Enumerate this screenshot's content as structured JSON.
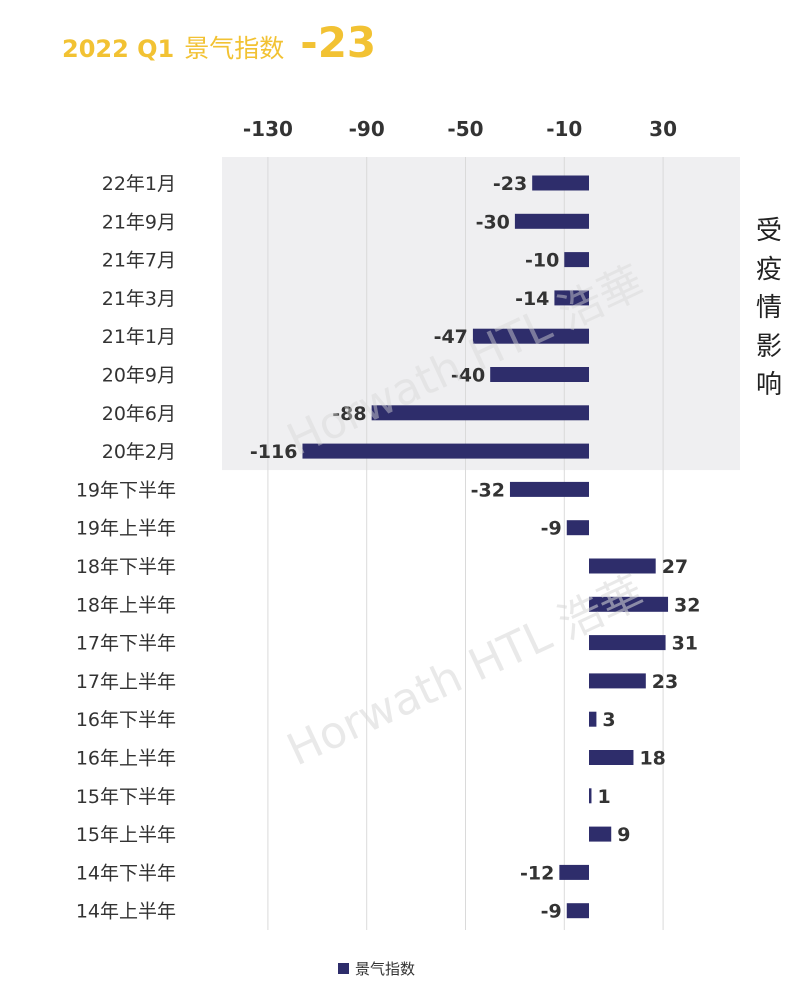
{
  "title": {
    "year_quarter": "2022 Q1",
    "label": "景气指数",
    "value": "-23"
  },
  "side_note": [
    "受",
    "疫",
    "情",
    "影",
    "响"
  ],
  "watermark": "Horwath HTL 浩華",
  "colors": {
    "bar": "#2E2D6B",
    "title": "#F2C233",
    "shade": "#EFEFF1",
    "grid": "#DADADA"
  },
  "chart_data": {
    "type": "bar",
    "orientation": "horizontal",
    "categories": [
      "22年1月",
      "21年9月",
      "21年7月",
      "21年3月",
      "21年1月",
      "20年9月",
      "20年6月",
      "20年2月",
      "19年下半年",
      "19年上半年",
      "18年下半年",
      "18年上半年",
      "17年下半年",
      "17年上半年",
      "16年下半年",
      "16年上半年",
      "15年下半年",
      "15年上半年",
      "14年下半年",
      "14年上半年"
    ],
    "series": [
      {
        "name": "景气指数",
        "values": [
          -23,
          -30,
          -10,
          -14,
          -47,
          -40,
          -88,
          -116,
          -32,
          -9,
          27,
          32,
          31,
          23,
          3,
          18,
          1,
          9,
          -12,
          -9
        ]
      }
    ],
    "xticks": [
      -130,
      -90,
      -50,
      -10,
      30
    ],
    "xlim": [
      -146,
      54
    ],
    "data_labels": true,
    "shaded_categories": [
      "22年1月",
      "21年9月",
      "21年7月",
      "21年3月",
      "21年1月",
      "20年9月",
      "20年6月",
      "20年2月"
    ],
    "legend": {
      "position": "bottom",
      "entries": [
        "景气指数"
      ]
    },
    "grid": true
  }
}
